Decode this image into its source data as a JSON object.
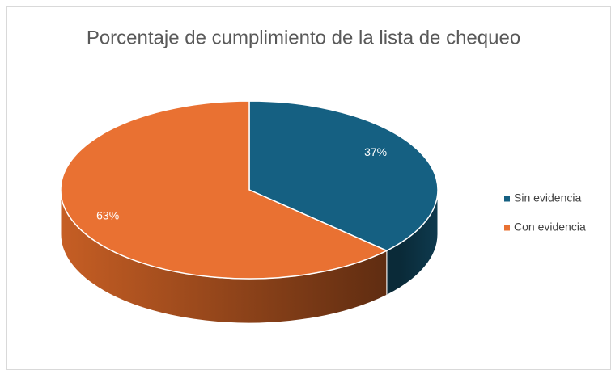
{
  "chart_data": {
    "type": "pie",
    "title": "Porcentaje de cumplimiento de la lista de chequeo",
    "categories": [
      "Sin evidencia",
      "Con evidencia"
    ],
    "values": [
      37,
      63
    ],
    "value_labels": [
      "37%",
      "63%"
    ],
    "colors": [
      "#156082",
      "#e97132"
    ],
    "legend": "right"
  }
}
